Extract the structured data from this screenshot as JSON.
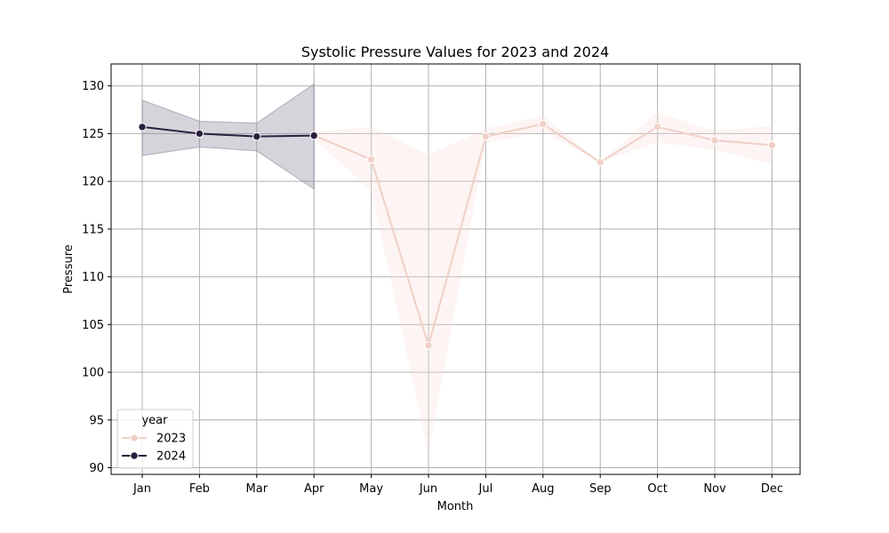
{
  "chart_data": {
    "type": "line",
    "title": "Systolic Pressure Values for 2023 and 2024",
    "xlabel": "Month",
    "ylabel": "Pressure",
    "categories": [
      "Jan",
      "Feb",
      "Mar",
      "Apr",
      "May",
      "Jun",
      "Jul",
      "Aug",
      "Sep",
      "Oct",
      "Nov",
      "Dec"
    ],
    "yticks": [
      90,
      95,
      100,
      105,
      110,
      115,
      120,
      125,
      130
    ],
    "ylim": [
      89.3,
      132.3
    ],
    "grid": true,
    "legend": {
      "title": "year",
      "placement": "lower-left"
    },
    "series": [
      {
        "name": "2023",
        "color": "#f0d0c8",
        "band_color": "#f4ddd6",
        "x": [
          "Apr",
          "May",
          "Jun",
          "Jul",
          "Aug",
          "Sep",
          "Oct",
          "Nov",
          "Dec"
        ],
        "values": [
          124.8,
          122.3,
          102.8,
          124.7,
          126.0,
          122.0,
          125.7,
          124.3,
          123.8
        ],
        "ci_low": [
          124.4,
          119.0,
          91.5,
          124.0,
          125.2,
          122.0,
          124.1,
          123.3,
          121.8
        ],
        "ci_high": [
          125.2,
          125.7,
          122.8,
          125.5,
          126.9,
          122.0,
          127.3,
          125.3,
          125.8
        ]
      },
      {
        "name": "2024",
        "color": "#2a1f3d",
        "band_color": "#8a8397",
        "x": [
          "Jan",
          "Feb",
          "Mar",
          "Apr"
        ],
        "values": [
          125.7,
          125.0,
          124.7,
          124.8
        ],
        "ci_low": [
          122.7,
          123.6,
          123.2,
          119.2
        ],
        "ci_high": [
          128.5,
          126.3,
          126.1,
          130.2
        ]
      }
    ]
  }
}
